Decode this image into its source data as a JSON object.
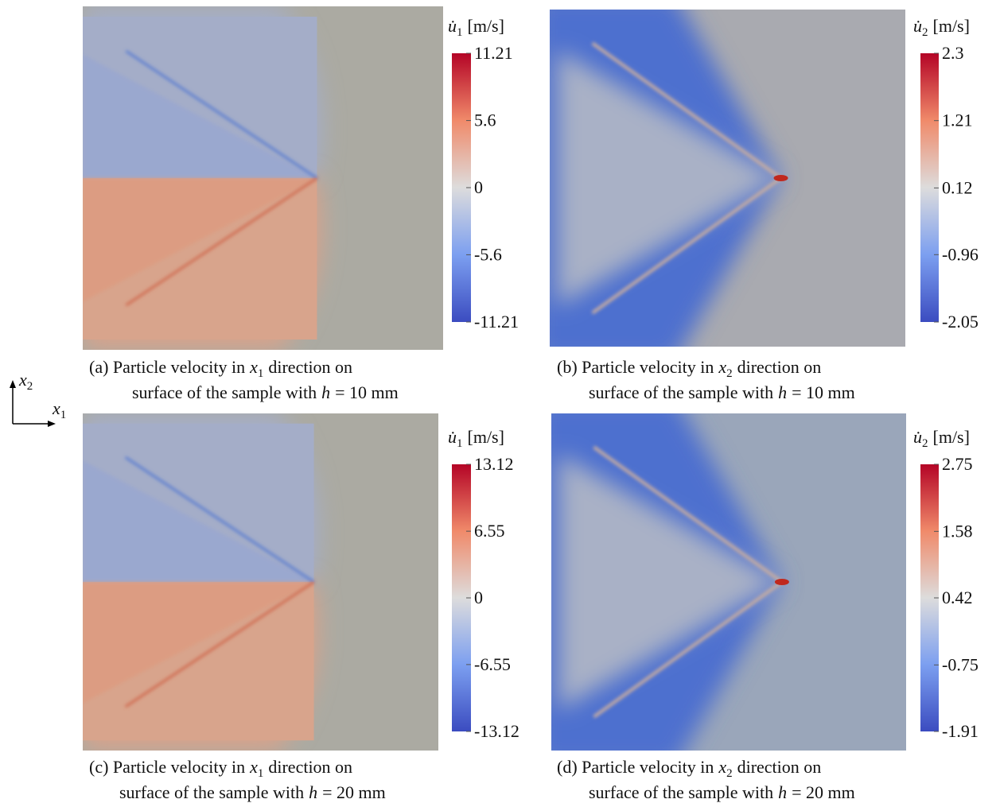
{
  "figure": {
    "axes_indicator": {
      "x2": {
        "var": "x",
        "sub": "2"
      },
      "x1": {
        "var": "x",
        "sub": "1"
      }
    },
    "panels": [
      {
        "colorbar": {
          "symbol": "u̇",
          "sub": "1",
          "unit": "[m/s]",
          "range": [
            -11.21,
            11.21
          ],
          "ticks": [
            11.21,
            5.6,
            0,
            -5.6,
            -11.21
          ]
        },
        "caption": {
          "text1": "(a) Particle velocity in",
          "var": "x",
          "sub": "1",
          "text2": "direction on",
          "line2": "surface of the sample with",
          "h": "h",
          "line2b": "= 10 mm"
        }
      },
      {
        "colorbar": {
          "symbol": "u̇",
          "sub": "2",
          "unit": "[m/s]",
          "range": [
            -2.05,
            2.3
          ],
          "ticks": [
            2.3,
            1.21,
            0.12,
            -0.96,
            -2.05
          ]
        },
        "caption": {
          "text1": "(b) Particle velocity in",
          "var": "x",
          "sub": "2",
          "text2": "direction on",
          "line2": "surface of the sample with",
          "h": "h",
          "line2b": "= 10 mm"
        }
      },
      {
        "colorbar": {
          "symbol": "u̇",
          "sub": "1",
          "unit": "[m/s]",
          "range": [
            -13.12,
            13.12
          ],
          "ticks": [
            13.12,
            6.55,
            0,
            -6.55,
            -13.12
          ]
        },
        "caption": {
          "text1": "(c) Particle velocity in",
          "var": "x",
          "sub": "1",
          "text2": "direction on",
          "line2": "surface of the sample with",
          "h": "h",
          "line2b": "= 20 mm"
        }
      },
      {
        "colorbar": {
          "symbol": "u̇",
          "sub": "2",
          "unit": "[m/s]",
          "range": [
            -1.91,
            2.75
          ],
          "ticks": [
            2.75,
            1.58,
            0.42,
            -0.75,
            -1.91
          ]
        },
        "caption": {
          "text1": "(d) Particle velocity in",
          "var": "x",
          "sub": "2",
          "text2": "direction on",
          "line2": "surface of the sample with",
          "h": "h",
          "line2b": "= 20 mm"
        }
      }
    ]
  }
}
